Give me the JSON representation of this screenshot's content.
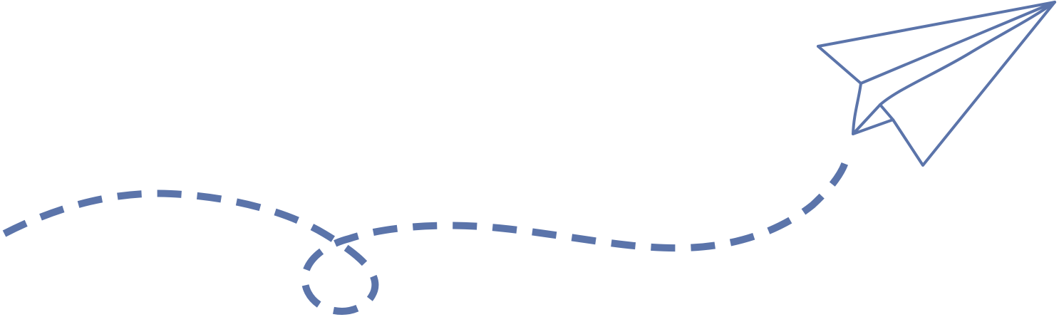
{
  "illustration": {
    "subject": "paper-plane-icon",
    "trail": "dashed-flight-path",
    "colors": {
      "stroke": "#5b74aa",
      "background": "#ffffff"
    }
  }
}
